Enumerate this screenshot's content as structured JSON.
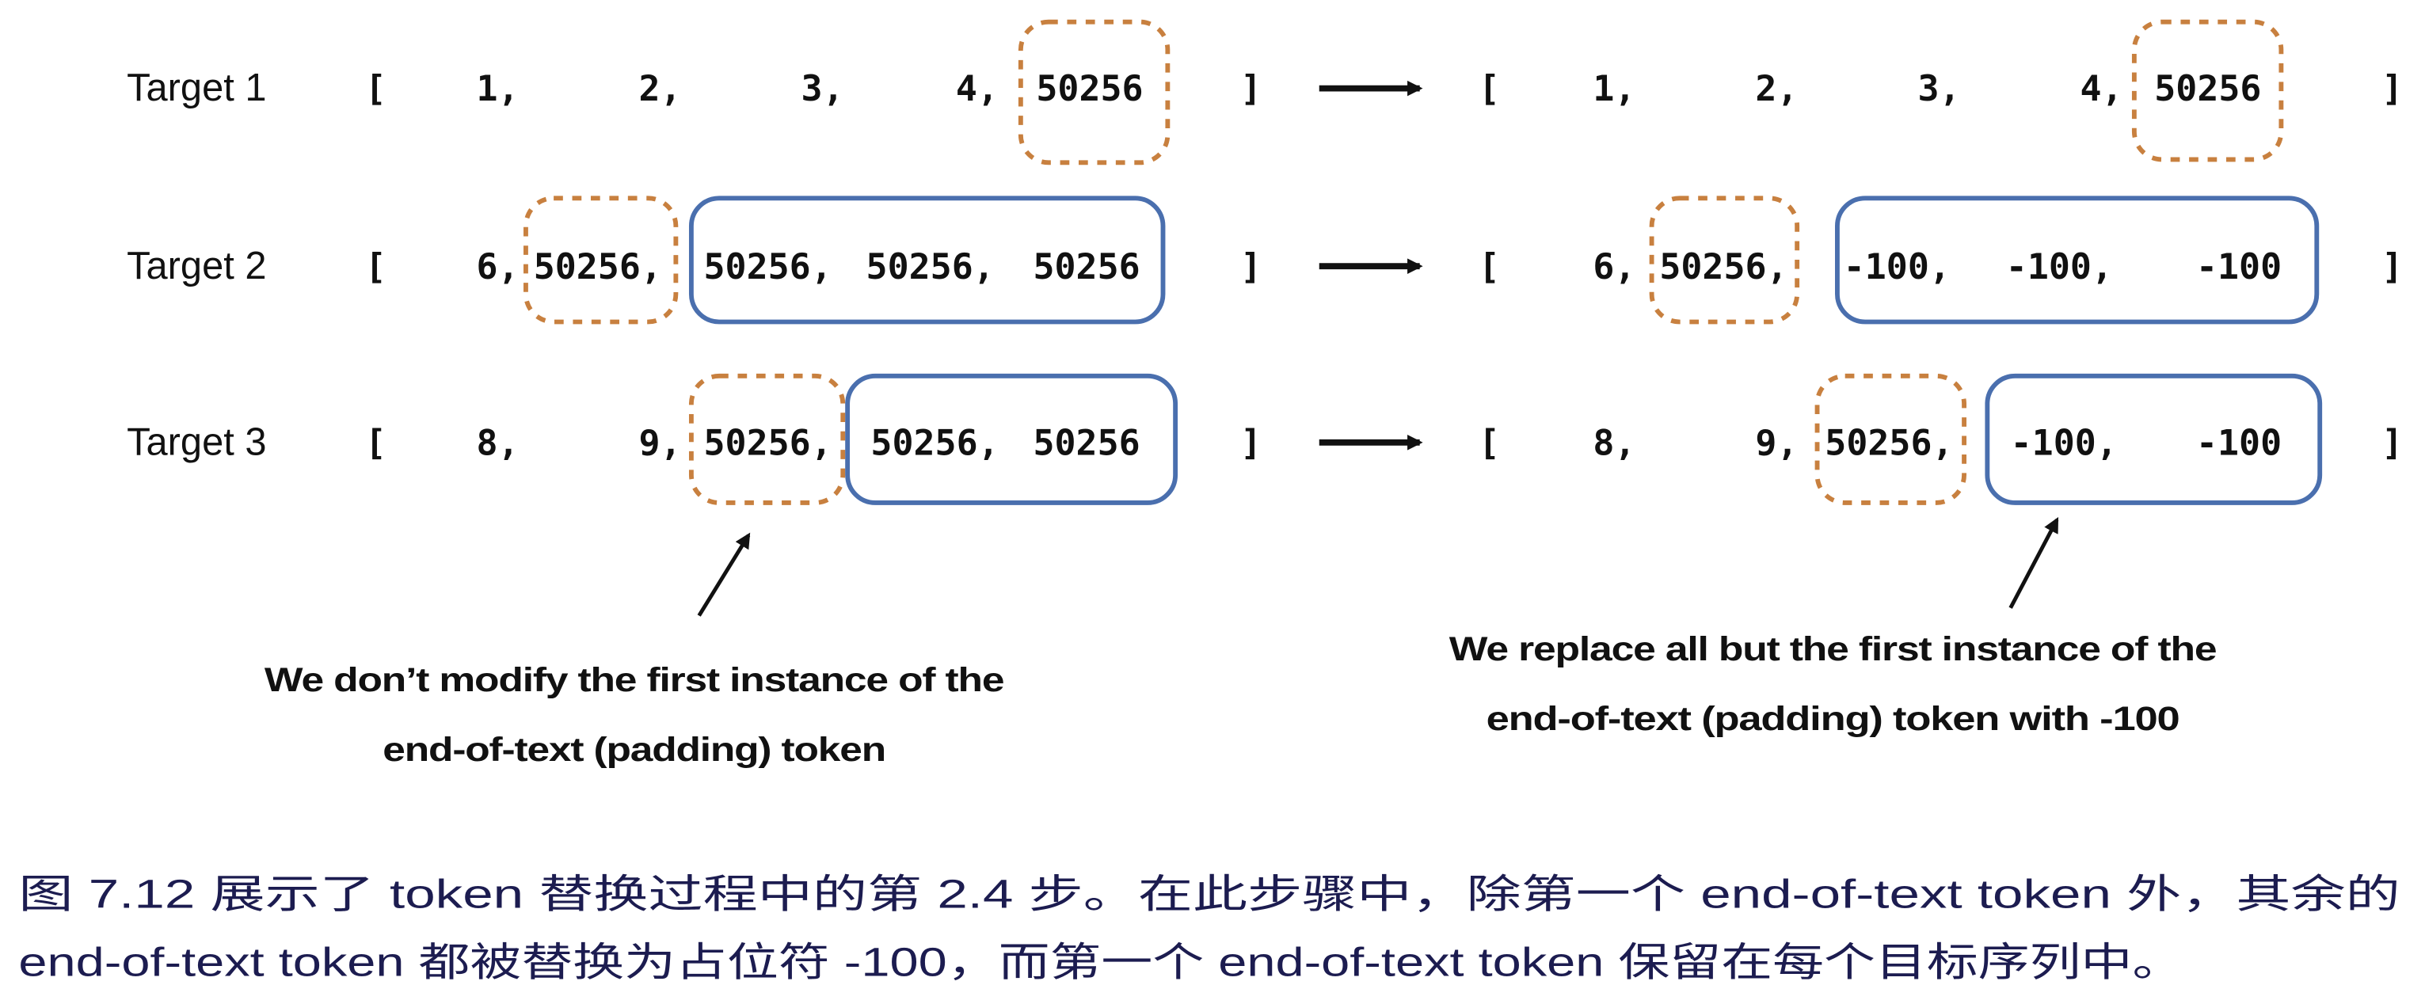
{
  "colors": {
    "first_eot_box": "#c8803f",
    "replaced_box": "#4a6fae",
    "caption_text": "#1c1c50"
  },
  "rows": [
    {
      "label": "Target 1",
      "input": [
        "1,",
        "2,",
        "3,",
        "4,",
        "50256"
      ],
      "output": [
        "1,",
        "2,",
        "3,",
        "4,",
        "50256"
      ]
    },
    {
      "label": "Target 2",
      "input": [
        "6,",
        "50256,",
        "50256,",
        "50256,",
        "50256"
      ],
      "output": [
        "6,",
        "50256,",
        "-100,",
        "-100,",
        "-100"
      ]
    },
    {
      "label": "Target 3",
      "input": [
        "8,",
        "9,",
        "50256,",
        "50256,",
        "50256"
      ],
      "output": [
        "8,",
        "9,",
        "50256,",
        "-100,",
        "-100"
      ]
    }
  ],
  "brackets": {
    "open": "[",
    "close": "]"
  },
  "callouts": {
    "left": [
      "We don’t modify the first instance of the",
      "end-of-text (padding) token"
    ],
    "right": [
      "We replace all but the first instance of the",
      "end-of-text (padding) token with -100"
    ]
  },
  "caption": [
    "图 7.12 展示了 token 替换过程中的第 2.4 步。在此步骤中，除第一个 end-of-text token 外，其余的",
    "end-of-text token 都被替换为占位符 -100，而第一个 end-of-text token 保留在每个目标序列中。"
  ]
}
